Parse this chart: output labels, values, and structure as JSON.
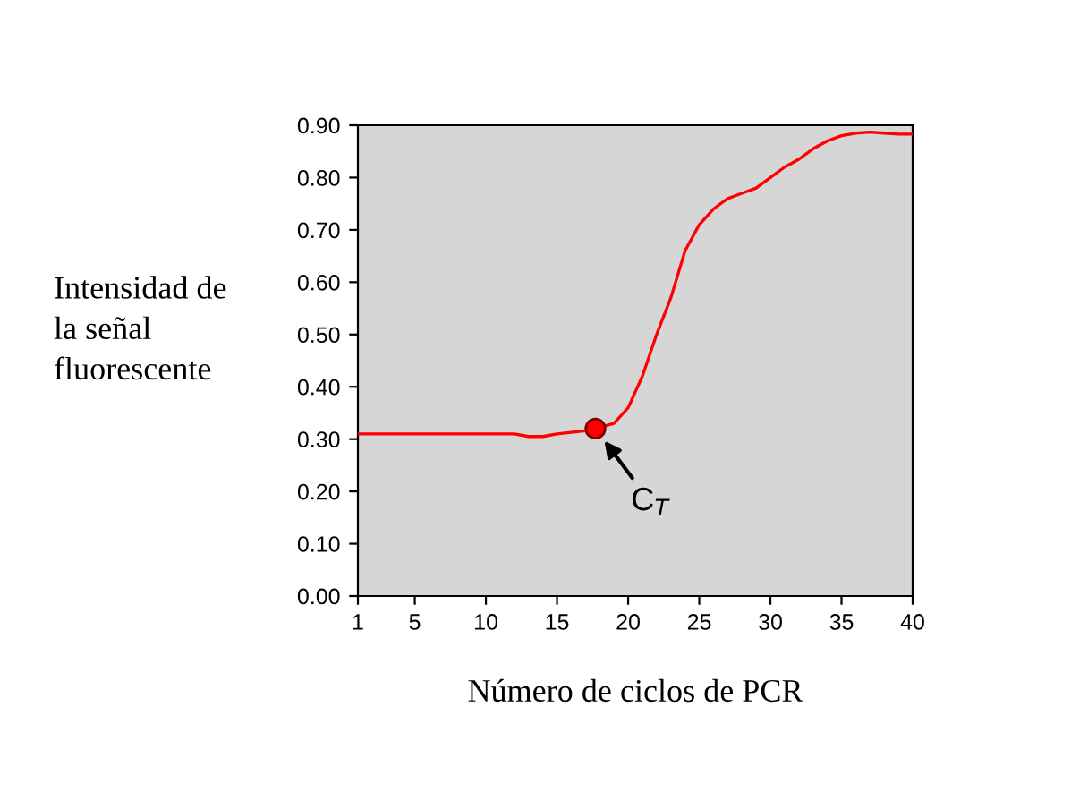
{
  "chart_data": {
    "type": "line",
    "xlabel": "Número de ciclos de PCR",
    "ylabel": "Intensidad de\nla señal\nfluorescente",
    "series": [
      {
        "color": "#ff0000",
        "x": [
          1,
          5,
          10,
          12,
          13,
          14,
          15,
          16,
          17,
          17.7,
          19,
          20,
          21,
          22,
          23,
          24,
          25,
          26,
          27,
          28,
          29,
          30,
          31,
          32,
          33,
          34,
          35,
          36,
          37,
          38,
          39,
          40
        ],
        "values": [
          0.31,
          0.31,
          0.31,
          0.31,
          0.305,
          0.305,
          0.31,
          0.313,
          0.316,
          0.32,
          0.33,
          0.36,
          0.42,
          0.5,
          0.57,
          0.66,
          0.71,
          0.74,
          0.76,
          0.77,
          0.78,
          0.8,
          0.82,
          0.835,
          0.855,
          0.87,
          0.88,
          0.885,
          0.887,
          0.885,
          0.883,
          0.883
        ]
      },
      {
        "type": "scatter",
        "color": "#ff0000",
        "x": [
          17.7
        ],
        "values": [
          0.32
        ],
        "marker": "circle"
      }
    ],
    "annotations": [
      {
        "text": "C$_{T}$",
        "x": 17.7,
        "y": 0.32
      }
    ],
    "xlim": [
      1,
      40
    ],
    "xticks": [
      1,
      5,
      10,
      15,
      20,
      25,
      30,
      35,
      40
    ],
    "ylim": [
      0,
      0.9
    ],
    "yticks": [
      {
        "value": 0,
        "label": "0.00"
      },
      {
        "value": 0.1,
        "label": "0.10"
      },
      {
        "value": 0.2,
        "label": "0.20"
      },
      {
        "value": 0.3,
        "label": "0.30"
      },
      {
        "value": 0.4,
        "label": "0.40"
      },
      {
        "value": 0.5,
        "label": "0.50"
      },
      {
        "value": 0.6,
        "label": "0.60"
      },
      {
        "value": 0.7,
        "label": "0.70"
      },
      {
        "value": 0.8,
        "label": "0.80"
      },
      {
        "value": 0.9,
        "label": "0.90"
      }
    ],
    "grid": false,
    "legend": false
  }
}
